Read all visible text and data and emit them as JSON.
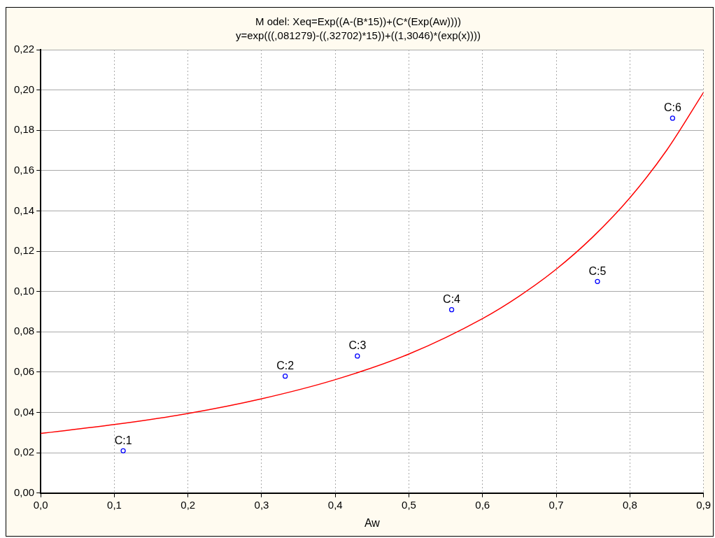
{
  "chart_data": {
    "type": "scatter",
    "title": "M odel: Xeq=Exp((A-(B*15))+(C*(Exp(Aw))))",
    "subtitle": "y=exp(((,081279)-((,32702)*15))+((1,3046)*(exp(x))))",
    "xlabel": "Aw",
    "xlim": [
      0,
      0.9
    ],
    "ylim": [
      0,
      0.22
    ],
    "xticks": [
      {
        "value": 0,
        "label": "0,0"
      },
      {
        "value": 0.1,
        "label": "0,1"
      },
      {
        "value": 0.2,
        "label": "0,2"
      },
      {
        "value": 0.3,
        "label": "0,3"
      },
      {
        "value": 0.4,
        "label": "0,4"
      },
      {
        "value": 0.5,
        "label": "0,5"
      },
      {
        "value": 0.6,
        "label": "0,6"
      },
      {
        "value": 0.7,
        "label": "0,7"
      },
      {
        "value": 0.8,
        "label": "0,8"
      },
      {
        "value": 0.9,
        "label": "0,9"
      }
    ],
    "yticks": [
      {
        "value": 0,
        "label": "0,00"
      },
      {
        "value": 0.02,
        "label": "0,02"
      },
      {
        "value": 0.04,
        "label": "0,04"
      },
      {
        "value": 0.06,
        "label": "0,06"
      },
      {
        "value": 0.08,
        "label": "0,08"
      },
      {
        "value": 0.1,
        "label": "0,10"
      },
      {
        "value": 0.12,
        "label": "0,12"
      },
      {
        "value": 0.14,
        "label": "0,14"
      },
      {
        "value": 0.16,
        "label": "0,16"
      },
      {
        "value": 0.18,
        "label": "0,18"
      },
      {
        "value": 0.2,
        "label": "0,20"
      },
      {
        "value": 0.22,
        "label": "0,22"
      }
    ],
    "grid": true,
    "legend": false,
    "marker": "circle",
    "annotations": [
      {
        "text": "C:1",
        "x": 0.112,
        "y": 0.021
      },
      {
        "text": "C:2",
        "x": 0.332,
        "y": 0.058
      },
      {
        "text": "C:3",
        "x": 0.43,
        "y": 0.068
      },
      {
        "text": "C:4",
        "x": 0.558,
        "y": 0.091
      },
      {
        "text": "C:5",
        "x": 0.756,
        "y": 0.105
      },
      {
        "text": "C:6",
        "x": 0.858,
        "y": 0.186
      }
    ],
    "series": [
      {
        "color": "#0000ff",
        "x": [
          0.112,
          0.332,
          0.43,
          0.558,
          0.756,
          0.858
        ],
        "values": [
          0.021,
          0.058,
          0.068,
          0.091,
          0.105,
          0.186
        ]
      },
      {
        "type": "line",
        "color": "#ff0000",
        "marker": "none",
        "x": [
          0,
          0.1,
          0.2,
          0.3,
          0.4,
          0.5,
          0.6,
          0.65,
          0.7,
          0.75,
          0.8,
          0.85,
          0.9
        ],
        "values": [
          0.0296,
          0.034,
          0.0395,
          0.0468,
          0.0563,
          0.069,
          0.0866,
          0.0978,
          0.1111,
          0.1272,
          0.1465,
          0.1701,
          0.1988
        ]
      }
    ]
  }
}
